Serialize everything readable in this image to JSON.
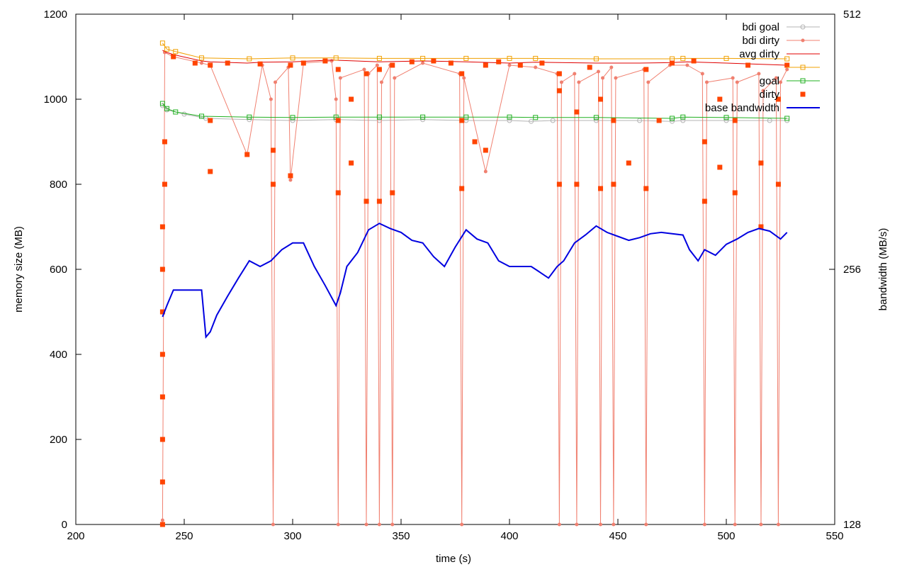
{
  "chart_data": {
    "type": "line",
    "title": "",
    "xlabel": "time (s)",
    "ylabel": "memory size (MB)",
    "y2label": "bandwidth (MB/s)",
    "xlim": [
      200,
      550
    ],
    "ylim": [
      0,
      1200
    ],
    "y2lim": [
      128,
      512
    ],
    "y2_scale": "log2",
    "x_ticks": [
      "200",
      "250",
      "300",
      "350",
      "400",
      "450",
      "500",
      "550"
    ],
    "y_ticks": [
      "0",
      "200",
      "400",
      "600",
      "800",
      "1000",
      "1200"
    ],
    "y2_ticks": [
      "128",
      "256",
      "512"
    ],
    "grid": false,
    "legend_position": "top-right",
    "series": [
      {
        "name": "bdi goal",
        "color": "#b4b4b4",
        "axis": "y",
        "style": "line-circle",
        "x": [
          240,
          242,
          250,
          260,
          280,
          300,
          320,
          340,
          360,
          380,
          400,
          410,
          420,
          440,
          460,
          475,
          480,
          500,
          520,
          528
        ],
        "y": [
          985,
          975,
          965,
          955,
          952,
          950,
          952,
          950,
          952,
          950,
          950,
          948,
          950,
          950,
          950,
          948,
          950,
          950,
          950,
          950
        ]
      },
      {
        "name": "bdi dirty",
        "color": "#f08070",
        "axis": "y",
        "style": "line-dot",
        "x": [
          240,
          241,
          245,
          258,
          262,
          279,
          286,
          290,
          291,
          292,
          298,
          299,
          305,
          318,
          320,
          321,
          322,
          333,
          334,
          335,
          339,
          340,
          341,
          345,
          346,
          347,
          360,
          377,
          378,
          379,
          389,
          400,
          412,
          422,
          423,
          424,
          430,
          431,
          432,
          441,
          442,
          443,
          447,
          448,
          449,
          462,
          463,
          464,
          474,
          482,
          489,
          490,
          491,
          503,
          504,
          505,
          515,
          516,
          517,
          523,
          524,
          525,
          528
        ],
        "y": [
          10,
          1110,
          1100,
          1085,
          1080,
          870,
          1080,
          1000,
          0,
          1040,
          1075,
          810,
          1085,
          1090,
          1000,
          0,
          1050,
          1070,
          0,
          1060,
          1080,
          0,
          1040,
          1080,
          0,
          1050,
          1085,
          1060,
          0,
          1050,
          830,
          1080,
          1075,
          1060,
          0,
          1040,
          1060,
          0,
          1040,
          1065,
          0,
          1050,
          1075,
          0,
          1050,
          1070,
          0,
          1040,
          1080,
          1080,
          1060,
          0,
          1040,
          1050,
          0,
          1040,
          1060,
          0,
          1020,
          1050,
          0,
          1040,
          1070
        ]
      },
      {
        "name": "avg dirty",
        "color": "#e00000",
        "axis": "y",
        "style": "line",
        "x": [
          240,
          242,
          245,
          258,
          262,
          279,
          286,
          300,
          318,
          340,
          360,
          380,
          400,
          412,
          440,
          460,
          474,
          482,
          500,
          528
        ],
        "y": [
          1115,
          1110,
          1105,
          1090,
          1088,
          1085,
          1087,
          1088,
          1092,
          1088,
          1090,
          1088,
          1085,
          1087,
          1085,
          1085,
          1086,
          1088,
          1085,
          1080
        ]
      },
      {
        "name": "",
        "color": "#f0a000",
        "axis": "y",
        "style": "line-square-open",
        "x": [
          240,
          242,
          246,
          258,
          280,
          300,
          320,
          340,
          360,
          380,
          400,
          412,
          440,
          475,
          480,
          500,
          528
        ],
        "y": [
          1132,
          1118,
          1112,
          1097,
          1095,
          1097,
          1097,
          1096,
          1096,
          1096,
          1096,
          1096,
          1095,
          1095,
          1096,
          1096,
          1095
        ]
      },
      {
        "name": "goal",
        "color": "#20b020",
        "axis": "y",
        "style": "line-square-open",
        "x": [
          240,
          242,
          246,
          258,
          280,
          300,
          320,
          340,
          360,
          380,
          400,
          412,
          440,
          475,
          480,
          500,
          528
        ],
        "y": [
          990,
          978,
          970,
          960,
          958,
          957,
          958,
          958,
          958,
          958,
          958,
          957,
          957,
          955,
          958,
          957,
          955
        ]
      },
      {
        "name": "dirty",
        "color": "#ff4400",
        "axis": "y",
        "style": "square-filled",
        "x": [
          240,
          240,
          240,
          240,
          240,
          240,
          240,
          240,
          241,
          241,
          245,
          255,
          262,
          262,
          262,
          270,
          279,
          285,
          291,
          291,
          299,
          299,
          305,
          315,
          321,
          321,
          321,
          327,
          327,
          334,
          334,
          340,
          340,
          346,
          346,
          355,
          365,
          373,
          378,
          378,
          378,
          384,
          389,
          389,
          395,
          405,
          415,
          423,
          423,
          423,
          431,
          431,
          437,
          442,
          442,
          448,
          448,
          455,
          463,
          463,
          469,
          475,
          485,
          490,
          490,
          497,
          497,
          504,
          504,
          510,
          516,
          516,
          524,
          524,
          528
        ],
        "y": [
          0,
          100,
          200,
          300,
          400,
          500,
          600,
          700,
          800,
          900,
          1100,
          1085,
          1080,
          950,
          830,
          1085,
          870,
          1083,
          880,
          800,
          1080,
          820,
          1085,
          1090,
          950,
          780,
          1070,
          1000,
          850,
          1060,
          760,
          1070,
          760,
          1080,
          780,
          1088,
          1090,
          1085,
          950,
          790,
          1060,
          900,
          1080,
          880,
          1088,
          1080,
          1085,
          1020,
          800,
          1060,
          970,
          800,
          1075,
          1000,
          790,
          950,
          800,
          850,
          1070,
          790,
          950,
          1085,
          1090,
          900,
          760,
          1000,
          840,
          950,
          780,
          1080,
          850,
          700,
          1000,
          800,
          1080
        ]
      },
      {
        "name": "base bandwidth",
        "color": "#0000e0",
        "axis": "y2",
        "style": "line",
        "x": [
          240,
          242,
          245,
          250,
          255,
          258,
          260,
          262,
          265,
          270,
          275,
          280,
          285,
          290,
          295,
          300,
          305,
          310,
          315,
          320,
          322,
          325,
          330,
          335,
          340,
          345,
          350,
          355,
          360,
          365,
          370,
          375,
          380,
          385,
          390,
          395,
          400,
          405,
          410,
          413,
          418,
          422,
          425,
          430,
          435,
          440,
          445,
          450,
          455,
          460,
          465,
          470,
          475,
          480,
          483,
          487,
          490,
          495,
          500,
          505,
          510,
          515,
          520,
          525,
          528
        ],
        "y2": [
          225,
          232,
          242,
          242,
          242,
          242,
          213,
          216,
          226,
          238,
          250,
          262,
          258,
          262,
          270,
          275,
          275,
          258,
          245,
          232,
          240,
          258,
          268,
          285,
          290,
          286,
          283,
          277,
          275,
          265,
          258,
          272,
          285,
          278,
          275,
          262,
          258,
          258,
          258,
          255,
          250,
          258,
          262,
          275,
          281,
          288,
          283,
          280,
          277,
          279,
          282,
          283,
          282,
          281,
          270,
          262,
          270,
          266,
          274,
          278,
          283,
          286,
          284,
          278,
          283
        ]
      }
    ]
  }
}
